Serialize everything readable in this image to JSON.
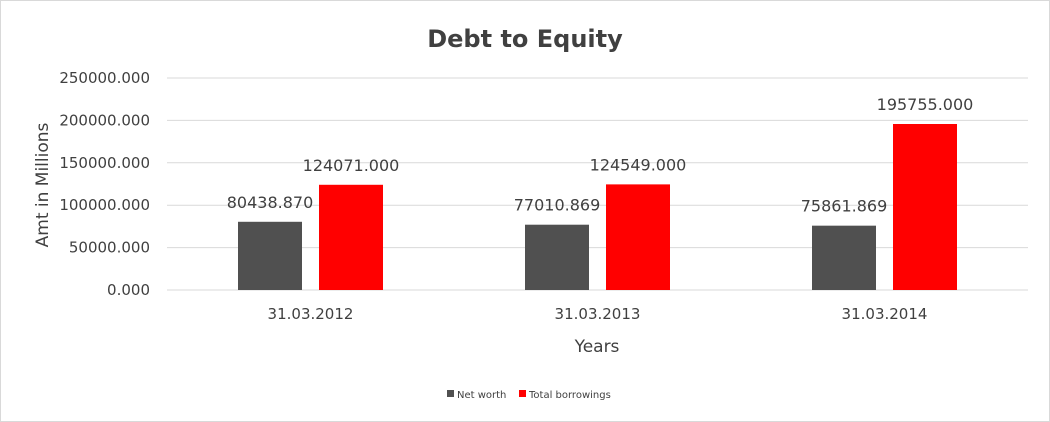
{
  "chart_data": {
    "type": "bar",
    "title": "Debt to Equity",
    "xlabel": "Years",
    "ylabel": "Amt in Millions",
    "categories": [
      "31.03.2012",
      "31.03.2013",
      "31.03.2014"
    ],
    "series": [
      {
        "name": "Net worth",
        "color": "#505050",
        "values": [
          80438.87,
          77010.869,
          75861.869
        ],
        "labels": [
          "80438.870",
          "77010.869",
          "75861.869"
        ]
      },
      {
        "name": "Total borrowings",
        "color": "#ff0000",
        "values": [
          124071.0,
          124549.0,
          195755.0
        ],
        "labels": [
          "124071.000",
          "124549.000",
          "195755.000"
        ]
      }
    ],
    "ylim": [
      0,
      250000
    ],
    "yticks": [
      0,
      50000,
      100000,
      150000,
      200000,
      250000
    ],
    "ytick_labels": [
      "0.000",
      "50000.000",
      "100000.000",
      "150000.000",
      "200000.000",
      "250000.000"
    ],
    "grid": true,
    "legend_position": "bottom"
  }
}
